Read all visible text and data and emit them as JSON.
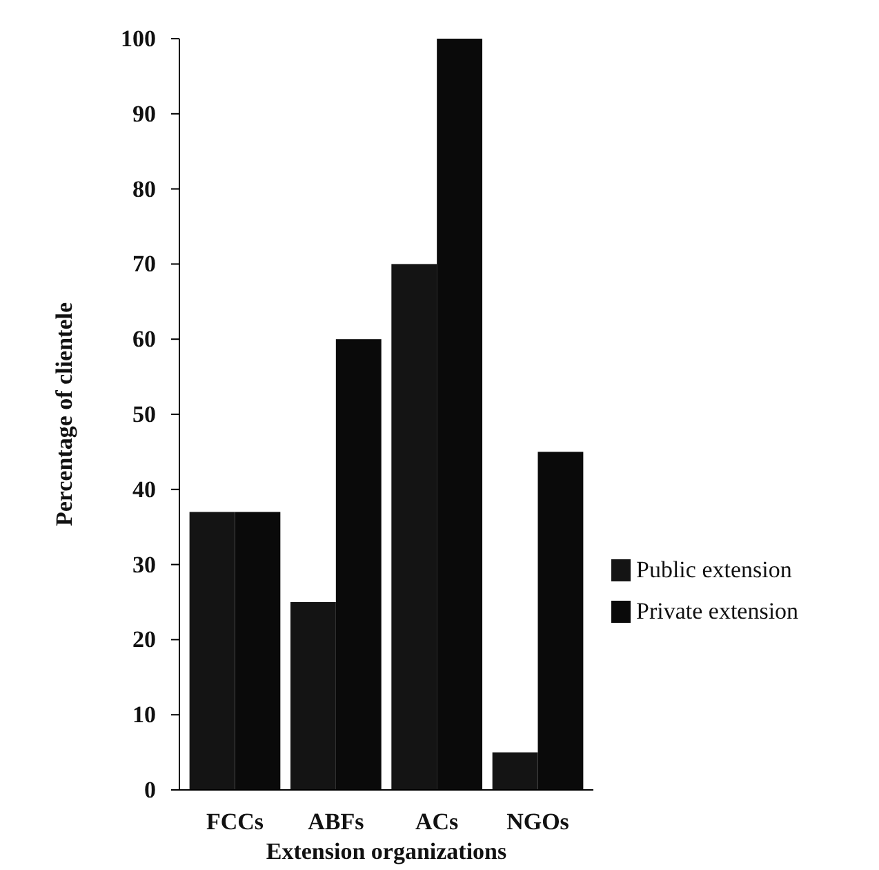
{
  "chart_data": {
    "type": "bar",
    "xlabel": "Extension organizations",
    "ylabel": "Percentage of clientele",
    "categories": [
      "FCCs",
      "ABFs",
      "ACs",
      "NGOs"
    ],
    "series": [
      {
        "name": "Public extension",
        "color": "#141414",
        "values": [
          37,
          25,
          70,
          5
        ]
      },
      {
        "name": "Private extension",
        "color": "#0a0a0a",
        "values": [
          37,
          60,
          100,
          45
        ]
      }
    ],
    "ylim": [
      0,
      100
    ],
    "yticks": [
      0,
      10,
      20,
      30,
      40,
      50,
      60,
      70,
      80,
      90,
      100
    ],
    "grid": false,
    "legend": "right"
  }
}
